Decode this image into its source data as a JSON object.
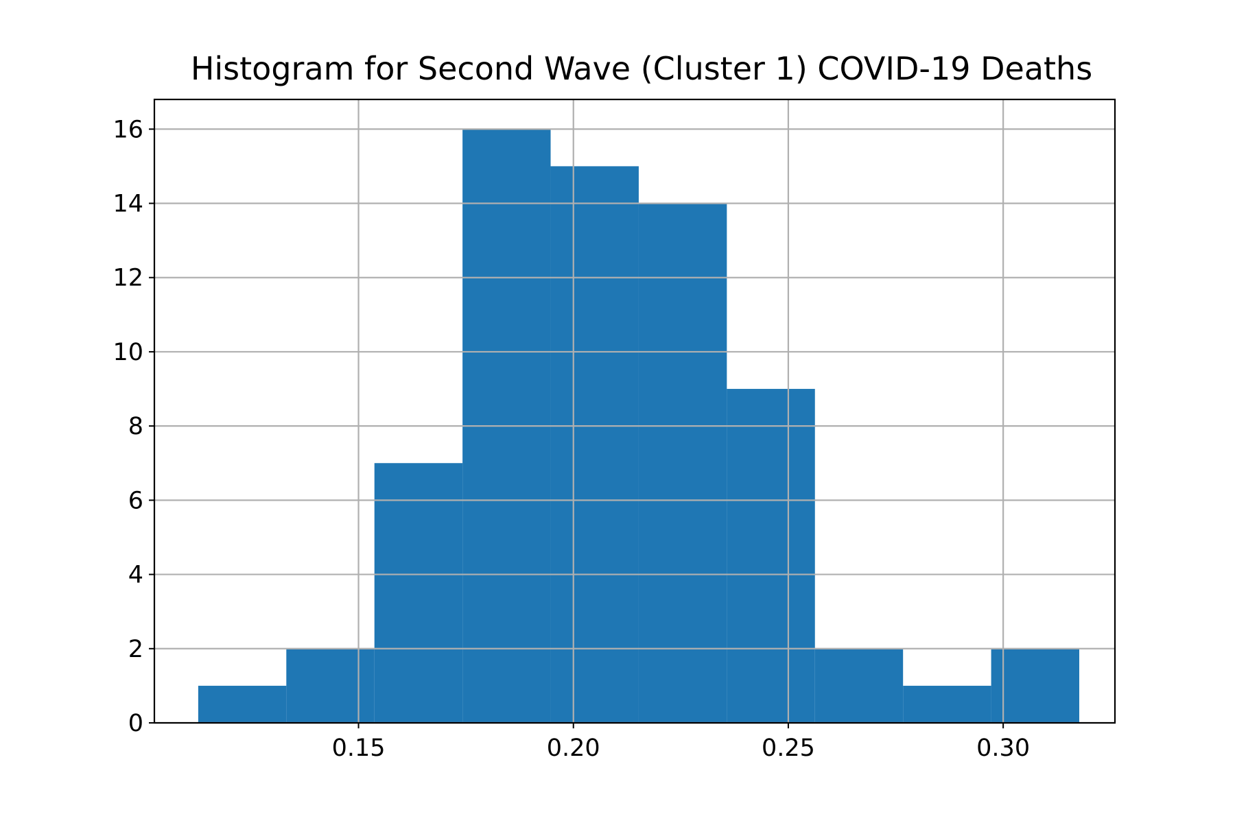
{
  "chart_data": {
    "type": "bar",
    "title": "Histogram for Second Wave (Cluster 1) COVID-19 Deaths",
    "xlabel": "",
    "ylabel": "",
    "bar_color": "#1f77b4",
    "grid": true,
    "xlim": [
      0.1025,
      0.326
    ],
    "ylim": [
      0,
      16.8
    ],
    "x_ticks": [
      "0.15",
      "0.20",
      "0.25",
      "0.30"
    ],
    "y_ticks": [
      "0",
      "2",
      "4",
      "6",
      "8",
      "10",
      "12",
      "14",
      "16"
    ],
    "bin_edges": [
      0.1127,
      0.1332,
      0.1537,
      0.1742,
      0.1947,
      0.2152,
      0.2357,
      0.2562,
      0.2767,
      0.2972,
      0.3177
    ],
    "values": [
      1,
      2,
      7,
      16,
      15,
      14,
      9,
      2,
      1,
      2
    ]
  }
}
